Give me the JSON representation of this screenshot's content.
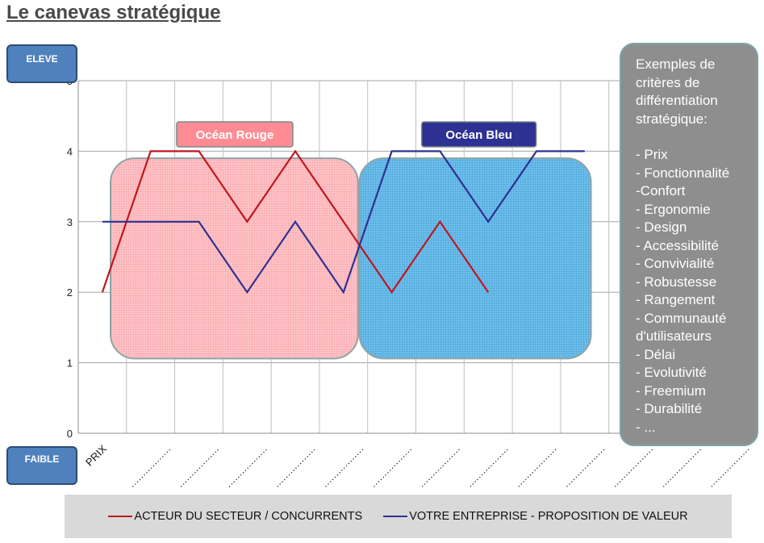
{
  "page": {
    "title": "Le canevas stratégique"
  },
  "levels": {
    "high": "ELEVE",
    "low": "FAIBLE"
  },
  "chart_data": {
    "type": "line",
    "categories": [
      "PRIX",
      "",
      "",
      "",
      "",
      "",
      "",
      "",
      "",
      "",
      "",
      "",
      "",
      ""
    ],
    "ylim": [
      0,
      5
    ],
    "yticks": [
      0,
      1,
      2,
      3,
      4,
      5
    ],
    "grid": true,
    "series": [
      {
        "name": "ACTEUR DU SECTEUR / CONCURRENTS",
        "color": "#c0161c",
        "values": [
          2,
          4,
          4,
          3,
          4,
          3,
          2,
          3,
          2,
          null,
          null,
          null,
          null,
          null
        ]
      },
      {
        "name": "VOTRE ENTREPRISE - PROPOSITION DE VALEUR",
        "color": "#2e3192",
        "values": [
          3,
          3,
          3,
          2,
          3,
          2,
          4,
          4,
          3,
          4,
          4,
          null,
          null,
          null
        ]
      }
    ],
    "legend_position": "bottom",
    "regions": [
      {
        "label": "Océan Rouge",
        "fill": "#ffb3b8",
        "label_color": "#ff8c94"
      },
      {
        "label": "Océan Bleu",
        "fill": "#5db6e8",
        "label_color": "#2e3192"
      }
    ]
  },
  "criteria": {
    "heading": "Exemples de critères de différentiation stratégique:",
    "items": [
      "- Prix",
      "- Fonctionnalité",
      "-Confort",
      "- Ergonomie",
      "- Design",
      "- Accessibilité",
      "- Convivialité",
      "- Robustesse",
      "- Rangement",
      "- Communauté d'utilisateurs",
      "- Délai",
      "- Evolutivité",
      "- Freemium",
      "- Durabilité",
      "- ..."
    ]
  }
}
